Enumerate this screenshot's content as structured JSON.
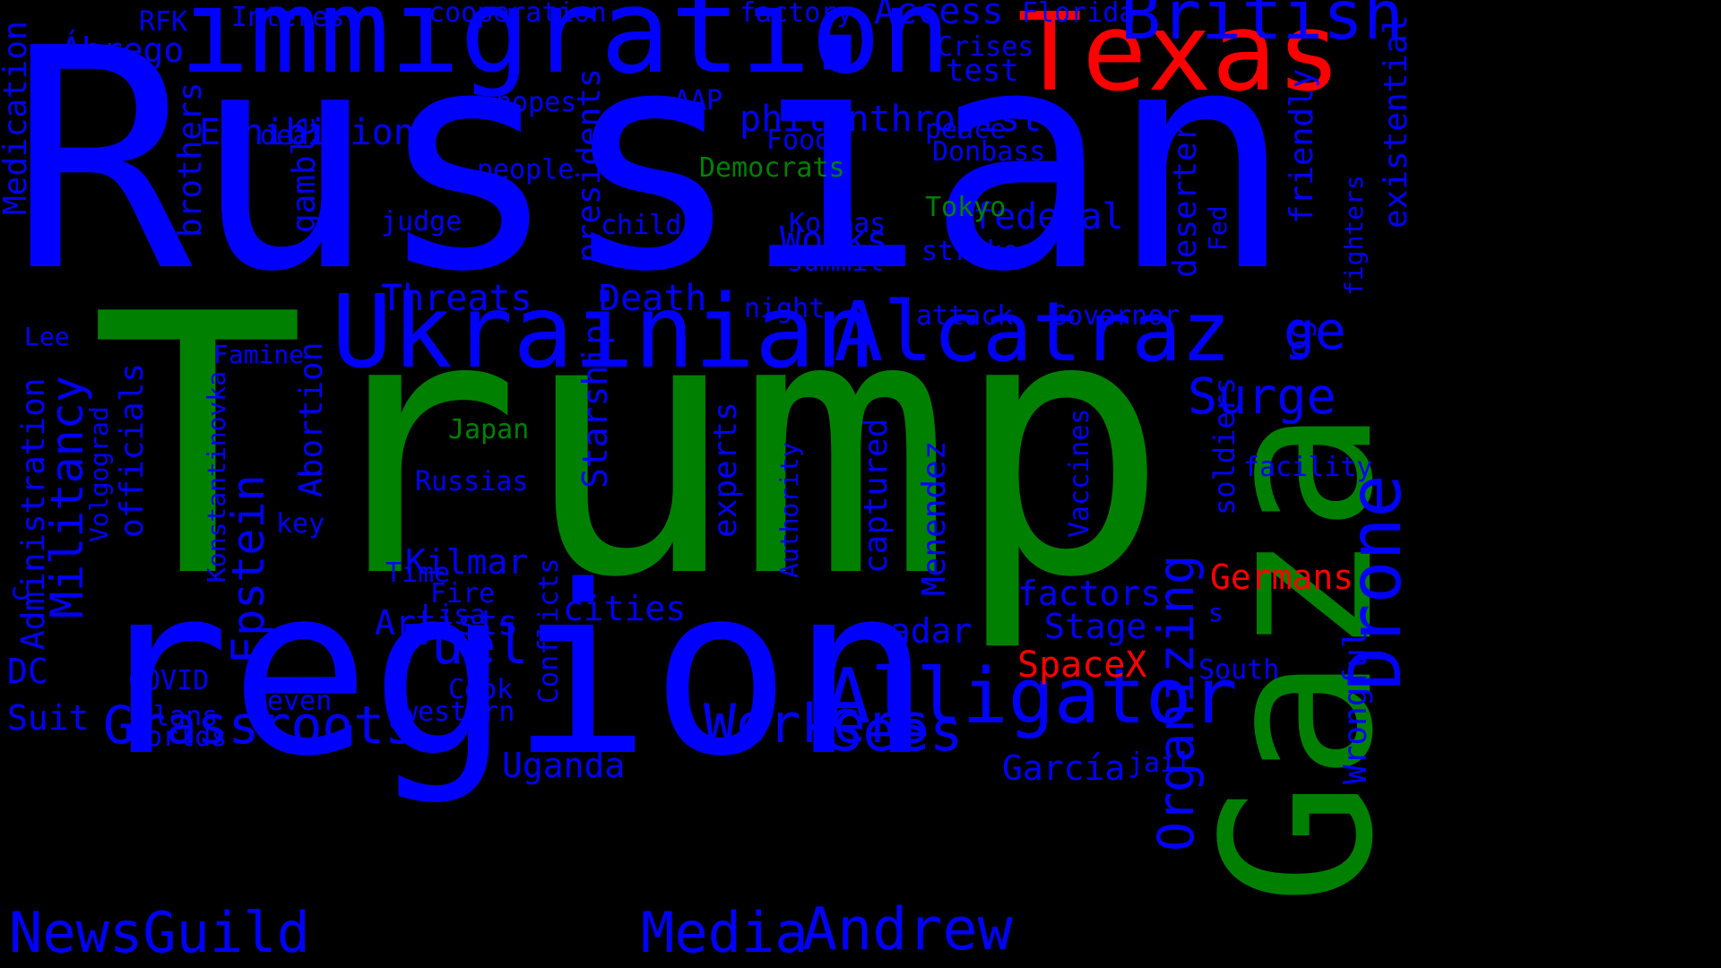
{
  "colors": {
    "background": "#000000",
    "blue": "#0000ff",
    "green": "#008000",
    "red": "#ff0000"
  },
  "words": [
    {
      "text": "Russian",
      "color": "#0000ff"
    },
    {
      "text": "Trump",
      "color": "#008000"
    },
    {
      "text": "region",
      "color": "#0000ff"
    },
    {
      "text": "immigration",
      "color": "#0000ff"
    },
    {
      "text": "Texas",
      "color": "#ff0000"
    },
    {
      "text": "Gaza",
      "color": "#008000"
    },
    {
      "text": "Ukrainian",
      "color": "#0000ff"
    },
    {
      "text": "Alcatraz",
      "color": "#0000ff"
    },
    {
      "text": "Alligator",
      "color": "#0000ff"
    },
    {
      "text": "British",
      "color": "#0000ff"
    },
    {
      "text": "Drone",
      "color": "#0000ff"
    },
    {
      "text": "Andrew",
      "color": "#0000ff"
    },
    {
      "text": "NewsGuild",
      "color": "#0000ff"
    },
    {
      "text": "Media",
      "color": "#0000ff"
    },
    {
      "text": "Workers",
      "color": "#0000ff"
    },
    {
      "text": "Grassroots",
      "color": "#0000ff"
    },
    {
      "text": "Fuel",
      "color": "#0000ff"
    },
    {
      "text": "Sees",
      "color": "#0000ff"
    },
    {
      "text": "Organizing",
      "color": "#0000ff"
    },
    {
      "text": "Surge",
      "color": "#0000ff"
    },
    {
      "text": "Epstein",
      "color": "#0000ff"
    },
    {
      "text": "Militancy",
      "color": "#0000ff"
    },
    {
      "text": "Access",
      "color": "#0000ff"
    },
    {
      "text": "Exhibition",
      "color": "#0000ff"
    },
    {
      "text": "philanthropist",
      "color": "#0000ff"
    },
    {
      "text": "Threats",
      "color": "#0000ff"
    },
    {
      "text": "Death",
      "color": "#0000ff"
    },
    {
      "text": "Works",
      "color": "#0000ff"
    },
    {
      "text": "federal",
      "color": "#0000ff"
    },
    {
      "text": "Ábrego",
      "color": "#0000ff"
    },
    {
      "text": "Starship",
      "color": "#0000ff"
    },
    {
      "text": "Kilmar",
      "color": "#0000ff"
    },
    {
      "text": "Artists",
      "color": "#0000ff"
    },
    {
      "text": "presidents",
      "color": "#0000ff"
    },
    {
      "text": "gamble",
      "color": "#0000ff"
    },
    {
      "text": "brothers",
      "color": "#0000ff"
    },
    {
      "text": "Medication",
      "color": "#0000ff"
    },
    {
      "text": "existential",
      "color": "#0000ff"
    },
    {
      "text": "friendly",
      "color": "#0000ff"
    },
    {
      "text": "deserter",
      "color": "#0000ff"
    },
    {
      "text": "captured",
      "color": "#0000ff"
    },
    {
      "text": "Menendez",
      "color": "#0000ff"
    },
    {
      "text": "experts",
      "color": "#0000ff"
    },
    {
      "text": "Abortion",
      "color": "#0000ff"
    },
    {
      "text": "officials",
      "color": "#0000ff"
    },
    {
      "text": "Administration",
      "color": "#0000ff"
    },
    {
      "text": "factors",
      "color": "#0000ff"
    },
    {
      "text": "Stage",
      "color": "#0000ff"
    },
    {
      "text": "radar",
      "color": "#0000ff"
    },
    {
      "text": "cities",
      "color": "#0000ff"
    },
    {
      "text": "Uganda",
      "color": "#0000ff"
    },
    {
      "text": "García",
      "color": "#0000ff"
    },
    {
      "text": "Suit",
      "color": "#0000ff"
    },
    {
      "text": "DC",
      "color": "#0000ff"
    },
    {
      "text": "Wrongful",
      "color": "#0000ff"
    },
    {
      "text": "soldiers",
      "color": "#0000ff"
    },
    {
      "text": "Vaccines",
      "color": "#0000ff"
    },
    {
      "text": "Conflicts",
      "color": "#0000ff"
    },
    {
      "text": "Konstantinovka",
      "color": "#0000ff"
    },
    {
      "text": "Volgograd",
      "color": "#0000ff"
    },
    {
      "text": "Authority",
      "color": "#0000ff"
    },
    {
      "text": "fighters",
      "color": "#0000ff"
    },
    {
      "text": "Fed",
      "color": "#0000ff"
    },
    {
      "text": "test",
      "color": "#0000ff"
    },
    {
      "text": "Crises",
      "color": "#0000ff"
    },
    {
      "text": "Florida",
      "color": "#0000ff"
    },
    {
      "text": "factory",
      "color": "#0000ff"
    },
    {
      "text": "cooperation",
      "color": "#0000ff"
    },
    {
      "text": "Interest",
      "color": "#0000ff"
    },
    {
      "text": "RFK",
      "color": "#0000ff"
    },
    {
      "text": "hopes",
      "color": "#0000ff"
    },
    {
      "text": "AAP",
      "color": "#0000ff"
    },
    {
      "text": "deal",
      "color": "#0000ff"
    },
    {
      "text": "Food",
      "color": "#0000ff"
    },
    {
      "text": "peace",
      "color": "#0000ff"
    },
    {
      "text": "Donbass",
      "color": "#0000ff"
    },
    {
      "text": "people",
      "color": "#0000ff"
    },
    {
      "text": "Democrats",
      "color": "#008000"
    },
    {
      "text": "judge",
      "color": "#0000ff"
    },
    {
      "text": "child",
      "color": "#0000ff"
    },
    {
      "text": "Koreas",
      "color": "#0000ff"
    },
    {
      "text": "Tokyo",
      "color": "#008000"
    },
    {
      "text": "strike",
      "color": "#0000ff"
    },
    {
      "text": "summit",
      "color": "#0000ff"
    },
    {
      "text": "night",
      "color": "#0000ff"
    },
    {
      "text": "attack",
      "color": "#0000ff"
    },
    {
      "text": "Governor",
      "color": "#0000ff"
    },
    {
      "text": "Lee",
      "color": "#0000ff"
    },
    {
      "text": "Famine",
      "color": "#0000ff"
    },
    {
      "text": "Japan",
      "color": "#008000"
    },
    {
      "text": "Russias",
      "color": "#0000ff"
    },
    {
      "text": "key",
      "color": "#0000ff"
    },
    {
      "text": "facility",
      "color": "#0000ff"
    },
    {
      "text": "Germans",
      "color": "#ff0000"
    },
    {
      "text": "SpaceX",
      "color": "#ff0000"
    },
    {
      "text": "South",
      "color": "#0000ff"
    },
    {
      "text": "Time",
      "color": "#0000ff"
    },
    {
      "text": "Fire",
      "color": "#0000ff"
    },
    {
      "text": "Lisa",
      "color": "#0000ff"
    },
    {
      "text": "COVID",
      "color": "#0000ff"
    },
    {
      "text": "Seven",
      "color": "#0000ff"
    },
    {
      "text": "Cook",
      "color": "#0000ff"
    },
    {
      "text": "western",
      "color": "#0000ff"
    },
    {
      "text": "Plans",
      "color": "#0000ff"
    },
    {
      "text": "Worlds",
      "color": "#0000ff"
    },
    {
      "text": "jail",
      "color": "#0000ff"
    },
    {
      "text": "s",
      "color": "#0000ff"
    },
    {
      "text": "ge",
      "color": "#0000ff"
    },
    {
      "text": "og",
      "color": "#0000ff"
    },
    {
      "text": "c",
      "color": "#0000ff"
    }
  ]
}
